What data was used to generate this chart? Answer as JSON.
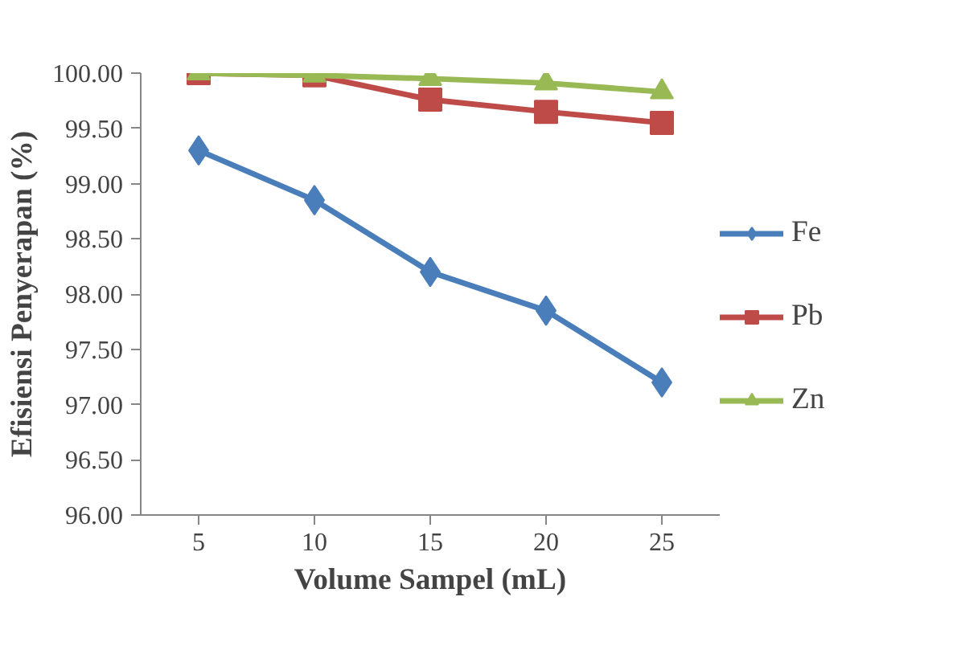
{
  "chart_data": {
    "type": "line",
    "xlabel": "Volume Sampel (mL)",
    "ylabel": "Efisiensi Penyerapan (%)",
    "categories": [
      "5",
      "10",
      "15",
      "20",
      "25"
    ],
    "ylim": [
      96,
      100
    ],
    "yticks": [
      {
        "value": 96,
        "label": "96.00"
      },
      {
        "value": 96.5,
        "label": "96.50"
      },
      {
        "value": 97,
        "label": "97.00"
      },
      {
        "value": 97.5,
        "label": "97.50"
      },
      {
        "value": 98,
        "label": "98.00"
      },
      {
        "value": 98.5,
        "label": "98.50"
      },
      {
        "value": 99,
        "label": "99.00"
      },
      {
        "value": 99.5,
        "label": "99.50"
      },
      {
        "value": 100,
        "label": "100.00"
      }
    ],
    "series": [
      {
        "name": "Fe",
        "color": "#4a7ebb",
        "marker": "diamond",
        "values": [
          99.3,
          98.85,
          98.2,
          97.85,
          97.2
        ]
      },
      {
        "name": "Pb",
        "color": "#be4b48",
        "marker": "square",
        "values": [
          100.0,
          99.98,
          99.76,
          99.65,
          99.55
        ]
      },
      {
        "name": "Zn",
        "color": "#98b954",
        "marker": "triangle",
        "values": [
          100.0,
          99.98,
          99.95,
          99.91,
          99.83
        ]
      }
    ],
    "grid": false,
    "legend": "right",
    "line_style": "solid"
  }
}
